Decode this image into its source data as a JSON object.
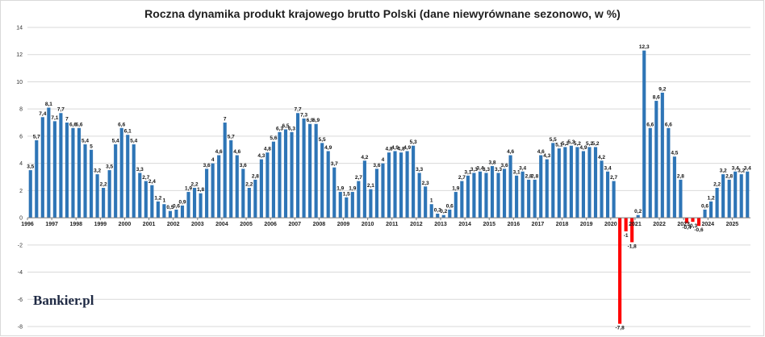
{
  "chart_data": {
    "type": "bar",
    "title": "Roczna dynamika produkt krajowego brutto Polski (dane niewyrównane sezonowo, w %)",
    "xlabel": "",
    "ylabel": "",
    "ylim": [
      -8,
      14
    ],
    "yticks": [
      "-8",
      "-6",
      "-4",
      "-2",
      "0",
      "2",
      "4",
      "6",
      "8",
      "10",
      "12",
      "14"
    ],
    "grid": true,
    "legend": "none",
    "colors": {
      "positive": "#2e75b6",
      "negative": "#ff0000",
      "grid": "#d9d9d9"
    },
    "year_labels": [
      "1996",
      "1997",
      "1998",
      "1999",
      "2000",
      "2001",
      "2002",
      "2003",
      "2004",
      "2005",
      "2006",
      "2007",
      "2008",
      "2009",
      "2010",
      "2011",
      "2012",
      "2013",
      "2014",
      "2015",
      "2016",
      "2017",
      "2018",
      "2019",
      "2020",
      "2021",
      "2022",
      "2023",
      "2024",
      "2025"
    ],
    "values": [
      3.5,
      5.7,
      7.4,
      8.1,
      7.1,
      7.7,
      7.0,
      6.6,
      6.6,
      5.4,
      5.0,
      3.2,
      2.2,
      3.5,
      5.4,
      6.6,
      6.1,
      5.4,
      3.3,
      2.7,
      2.4,
      1.2,
      1.0,
      0.5,
      0.6,
      0.9,
      1.9,
      2.2,
      1.8,
      3.6,
      4.0,
      4.6,
      7.0,
      5.7,
      4.6,
      3.6,
      2.2,
      2.8,
      4.3,
      4.8,
      5.6,
      6.3,
      6.5,
      6.3,
      7.7,
      7.3,
      6.9,
      6.9,
      5.5,
      4.9,
      3.7,
      1.9,
      1.5,
      1.9,
      2.7,
      4.2,
      2.1,
      3.6,
      4.0,
      4.8,
      4.9,
      4.8,
      4.9,
      5.3,
      3.3,
      2.3,
      1.0,
      0.3,
      0.2,
      0.6,
      1.9,
      2.7,
      3.1,
      3.3,
      3.4,
      3.3,
      3.8,
      3.3,
      3.6,
      4.6,
      3.1,
      3.4,
      2.8,
      2.8,
      4.6,
      4.3,
      5.5,
      5.1,
      5.2,
      5.3,
      5.2,
      4.9,
      5.2,
      5.2,
      4.2,
      3.4,
      2.7,
      -7.8,
      -1.0,
      -1.8,
      0.2,
      12.3,
      6.6,
      8.6,
      9.2,
      6.6,
      4.5,
      2.8,
      -0.4,
      -0.3,
      -0.6,
      0.6,
      1.2,
      2.2,
      3.2,
      2.8,
      3.4,
      3.2,
      3.4
    ],
    "data_labels": [
      "3,5",
      "5,7",
      "7,4",
      "8,1",
      "7,1",
      "7,7",
      "7",
      "6,6",
      "6,6",
      "5,4",
      "5",
      "3,2",
      "2,2",
      "3,5",
      "5,4",
      "6,6",
      "6,1",
      "5,4",
      "3,3",
      "2,7",
      "2,4",
      "1,2",
      "1",
      "0,5",
      "0,6",
      "0,9",
      "1,9",
      "2,2",
      "1,8",
      "3,6",
      "4",
      "4,6",
      "7",
      "5,7",
      "4,6",
      "3,6",
      "2,2",
      "2,8",
      "4,3",
      "4,8",
      "5,6",
      "6,3",
      "6,5",
      "6,3",
      "7,7",
      "7,3",
      "6,9",
      "6,9",
      "5,5",
      "4,9",
      "3,7",
      "1,9",
      "1,5",
      "1,9",
      "2,7",
      "4,2",
      "2,1",
      "3,6",
      "4",
      "4,8",
      "4,9",
      "4,8",
      "4,9",
      "5,3",
      "3,3",
      "2,3",
      "1",
      "0,3",
      "0,2",
      "0,6",
      "1,9",
      "2,7",
      "3,1",
      "3,3",
      "3,4",
      "3,3",
      "3,8",
      "3,3",
      "3,6",
      "4,6",
      "3,1",
      "3,4",
      "2,8",
      "2,8",
      "4,6",
      "4,3",
      "5,5",
      "5,1",
      "5,2",
      "5,3",
      "5,2",
      "4,9",
      "5,2",
      "5,2",
      "4,2",
      "3,4",
      "2,7",
      "-7,8",
      "-1",
      "-1,8",
      "0,2",
      "12,3",
      "6,6",
      "8,6",
      "9,2",
      "6,6",
      "4,5",
      "2,8",
      "-0,4",
      "-0,3",
      "-0,6",
      "0,6",
      "1,2",
      "2,2",
      "3,2",
      "2,8",
      "3,4",
      "3,2",
      "3,4"
    ]
  },
  "branding": {
    "logo_text": "Bankier.pl"
  }
}
